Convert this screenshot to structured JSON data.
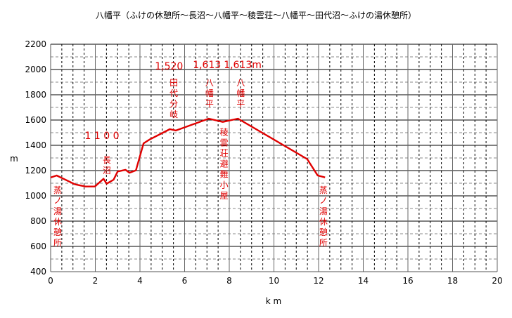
{
  "chart_data": {
    "type": "line",
    "title": "八幡平（ふけの休憩所〜長沼〜八幡平〜稜雲荘〜八幡平〜田代沼〜ふけの湯休憩所）",
    "xlabel": "k m",
    "ylabel": "m",
    "xlim": [
      0,
      20
    ],
    "ylim": [
      400,
      2200
    ],
    "xticks": [
      "0",
      "2",
      "4",
      "6",
      "8",
      "10",
      "12",
      "14",
      "16",
      "18",
      "20"
    ],
    "yticks": [
      "400",
      "600",
      "800",
      "1000",
      "1200",
      "1400",
      "1600",
      "1800",
      "2000",
      "2200"
    ],
    "grid": true,
    "line_color": "#e00000",
    "series": [
      {
        "x": [
          0,
          0.27,
          1.09,
          1.56,
          1.98,
          2.37,
          2.51,
          2.82,
          3.0,
          3.35,
          3.53,
          3.82,
          4.16,
          4.45,
          5.34,
          5.61,
          7.08,
          7.71,
          8.39,
          9.07,
          11.49,
          11.96,
          12.29
        ],
        "y": [
          1145,
          1161,
          1091,
          1074,
          1074,
          1135,
          1096,
          1128,
          1193,
          1206,
          1183,
          1202,
          1415,
          1448,
          1528,
          1517,
          1611,
          1585,
          1611,
          1541,
          1291,
          1161,
          1146
        ]
      }
    ],
    "annotations": [
      {
        "text": "1 1 0 0",
        "x": 2.3,
        "y": 1450,
        "vertical": false
      },
      {
        "text": "長沼",
        "x": 2.5,
        "y": 1320,
        "vertical": true
      },
      {
        "text": "1,520",
        "x": 5.3,
        "y": 2000,
        "vertical": false
      },
      {
        "text": "田代分岐",
        "x": 5.5,
        "y": 1930,
        "vertical": true
      },
      {
        "text": "1,613",
        "x": 7.0,
        "y": 2010,
        "vertical": false
      },
      {
        "text": "八幡平",
        "x": 7.1,
        "y": 1930,
        "vertical": true
      },
      {
        "text": "1,613m",
        "x": 8.6,
        "y": 2010,
        "vertical": false
      },
      {
        "text": "八幡平",
        "x": 8.5,
        "y": 1930,
        "vertical": true
      },
      {
        "text": "稜雲荘避難小屋",
        "x": 7.75,
        "y": 1540,
        "vertical": true
      },
      {
        "text": "蒸ノ湯休憩所",
        "x": 0.3,
        "y": 1080,
        "vertical": true
      },
      {
        "text": "蒸ノ湯休憩所",
        "x": 12.2,
        "y": 1080,
        "vertical": true
      }
    ]
  }
}
